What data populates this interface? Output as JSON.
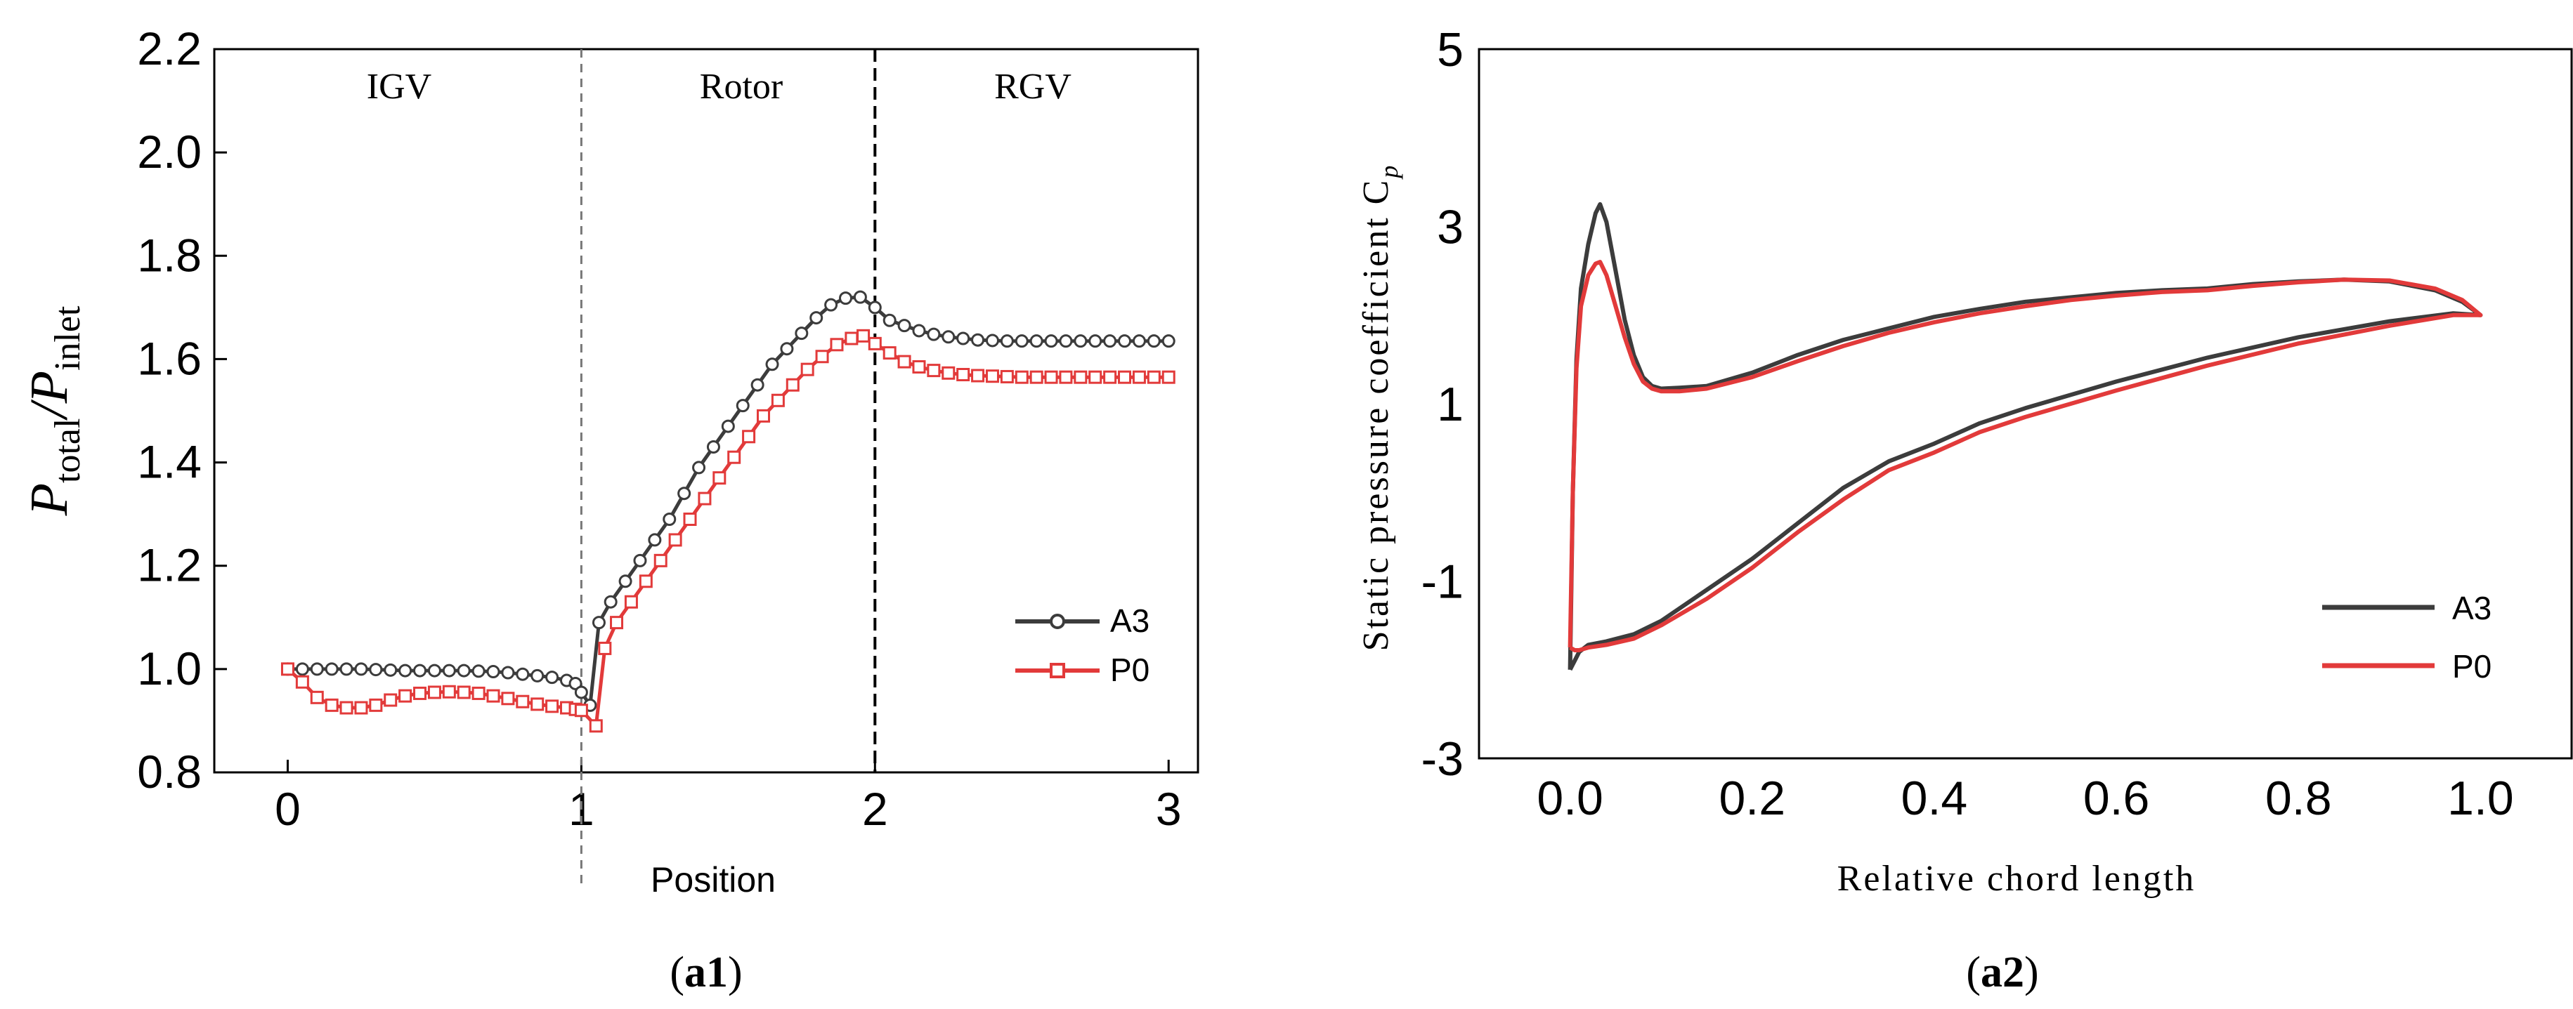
{
  "chart_data": [
    {
      "id": "a1",
      "type": "line",
      "panel_label": "a1",
      "title": "",
      "xlabel": "Position",
      "ylabel": {
        "main": "P",
        "sub1": "total",
        "sep": "/P",
        "sub2": "inlet"
      },
      "xlim": [
        -0.25,
        3.1
      ],
      "ylim": [
        0.8,
        2.2
      ],
      "xticks": [
        "0",
        "1",
        "2",
        "3"
      ],
      "yticks": [
        "0.8",
        "1.0",
        "1.2",
        "1.4",
        "1.6",
        "1.8",
        "2.0",
        "2.2"
      ],
      "regions": [
        "IGV",
        "Rotor",
        "RGV"
      ],
      "dividers": [
        1,
        2
      ],
      "legend": {
        "position": "lower-right",
        "entries": [
          "A3",
          "P0"
        ]
      },
      "series": [
        {
          "name": "A3",
          "color": "#3c3c3c",
          "marker": "circle",
          "points": [
            [
              0,
              1.0
            ],
            [
              0.05,
              1.0
            ],
            [
              0.1,
              1.0
            ],
            [
              0.15,
              1.0
            ],
            [
              0.2,
              1.0
            ],
            [
              0.25,
              1.0
            ],
            [
              0.3,
              0.999
            ],
            [
              0.35,
              0.998
            ],
            [
              0.4,
              0.997
            ],
            [
              0.45,
              0.997
            ],
            [
              0.5,
              0.997
            ],
            [
              0.55,
              0.997
            ],
            [
              0.6,
              0.997
            ],
            [
              0.65,
              0.996
            ],
            [
              0.7,
              0.995
            ],
            [
              0.75,
              0.993
            ],
            [
              0.8,
              0.99
            ],
            [
              0.85,
              0.987
            ],
            [
              0.9,
              0.984
            ],
            [
              0.95,
              0.978
            ],
            [
              0.98,
              0.972
            ],
            [
              1.0,
              0.955
            ],
            [
              1.03,
              0.93
            ],
            [
              1.06,
              1.09
            ],
            [
              1.1,
              1.13
            ],
            [
              1.15,
              1.17
            ],
            [
              1.2,
              1.21
            ],
            [
              1.25,
              1.25
            ],
            [
              1.3,
              1.29
            ],
            [
              1.35,
              1.34
            ],
            [
              1.4,
              1.39
            ],
            [
              1.45,
              1.43
            ],
            [
              1.5,
              1.47
            ],
            [
              1.55,
              1.51
            ],
            [
              1.6,
              1.55
            ],
            [
              1.65,
              1.59
            ],
            [
              1.7,
              1.62
            ],
            [
              1.75,
              1.65
            ],
            [
              1.8,
              1.68
            ],
            [
              1.85,
              1.705
            ],
            [
              1.9,
              1.718
            ],
            [
              1.95,
              1.72
            ],
            [
              2.0,
              1.7
            ],
            [
              2.05,
              1.675
            ],
            [
              2.1,
              1.665
            ],
            [
              2.15,
              1.655
            ],
            [
              2.2,
              1.648
            ],
            [
              2.25,
              1.643
            ],
            [
              2.3,
              1.64
            ],
            [
              2.35,
              1.637
            ],
            [
              2.4,
              1.636
            ],
            [
              2.45,
              1.635
            ],
            [
              2.5,
              1.635
            ],
            [
              2.55,
              1.635
            ],
            [
              2.6,
              1.635
            ],
            [
              2.65,
              1.635
            ],
            [
              2.7,
              1.635
            ],
            [
              2.75,
              1.635
            ],
            [
              2.8,
              1.635
            ],
            [
              2.85,
              1.635
            ],
            [
              2.9,
              1.635
            ],
            [
              2.95,
              1.635
            ],
            [
              3.0,
              1.635
            ]
          ]
        },
        {
          "name": "P0",
          "color": "#e23a3a",
          "marker": "square",
          "points": [
            [
              0,
              1.0
            ],
            [
              0.05,
              0.975
            ],
            [
              0.1,
              0.945
            ],
            [
              0.15,
              0.93
            ],
            [
              0.2,
              0.925
            ],
            [
              0.25,
              0.925
            ],
            [
              0.3,
              0.93
            ],
            [
              0.35,
              0.94
            ],
            [
              0.4,
              0.948
            ],
            [
              0.45,
              0.953
            ],
            [
              0.5,
              0.955
            ],
            [
              0.55,
              0.956
            ],
            [
              0.6,
              0.955
            ],
            [
              0.65,
              0.953
            ],
            [
              0.7,
              0.948
            ],
            [
              0.75,
              0.943
            ],
            [
              0.8,
              0.937
            ],
            [
              0.85,
              0.932
            ],
            [
              0.9,
              0.928
            ],
            [
              0.95,
              0.925
            ],
            [
              0.98,
              0.922
            ],
            [
              1.0,
              0.92
            ],
            [
              1.05,
              0.89
            ],
            [
              1.08,
              1.04
            ],
            [
              1.12,
              1.09
            ],
            [
              1.17,
              1.13
            ],
            [
              1.22,
              1.17
            ],
            [
              1.27,
              1.21
            ],
            [
              1.32,
              1.25
            ],
            [
              1.37,
              1.29
            ],
            [
              1.42,
              1.33
            ],
            [
              1.47,
              1.37
            ],
            [
              1.52,
              1.41
            ],
            [
              1.57,
              1.45
            ],
            [
              1.62,
              1.49
            ],
            [
              1.67,
              1.52
            ],
            [
              1.72,
              1.55
            ],
            [
              1.77,
              1.58
            ],
            [
              1.82,
              1.605
            ],
            [
              1.87,
              1.628
            ],
            [
              1.92,
              1.64
            ],
            [
              1.96,
              1.645
            ],
            [
              2.0,
              1.63
            ],
            [
              2.05,
              1.612
            ],
            [
              2.1,
              1.595
            ],
            [
              2.15,
              1.585
            ],
            [
              2.2,
              1.578
            ],
            [
              2.25,
              1.573
            ],
            [
              2.3,
              1.57
            ],
            [
              2.35,
              1.568
            ],
            [
              2.4,
              1.567
            ],
            [
              2.45,
              1.566
            ],
            [
              2.5,
              1.565
            ],
            [
              2.55,
              1.565
            ],
            [
              2.6,
              1.565
            ],
            [
              2.65,
              1.565
            ],
            [
              2.7,
              1.565
            ],
            [
              2.75,
              1.565
            ],
            [
              2.8,
              1.565
            ],
            [
              2.85,
              1.565
            ],
            [
              2.9,
              1.565
            ],
            [
              2.95,
              1.565
            ],
            [
              3.0,
              1.565
            ]
          ]
        }
      ]
    },
    {
      "id": "a2",
      "type": "line",
      "panel_label": "a2",
      "title": "",
      "xlabel": "Relative chord length",
      "ylabel": {
        "main": "Static pressure coefficient C",
        "sub": "p"
      },
      "xlim": [
        -0.1,
        1.1
      ],
      "ylim": [
        -3,
        5
      ],
      "xticks": [
        "0.0",
        "0.2",
        "0.4",
        "0.6",
        "0.8",
        "1.0"
      ],
      "yticks": [
        "-3",
        "-1",
        "1",
        "3",
        "5"
      ],
      "legend": {
        "position": "lower-right",
        "entries": [
          "A3",
          "P0"
        ]
      },
      "series": [
        {
          "name": "A3",
          "color": "#3c3c3c",
          "points": [
            [
              0.0,
              -2.0
            ],
            [
              0.003,
              0.0
            ],
            [
              0.007,
              1.5
            ],
            [
              0.012,
              2.3
            ],
            [
              0.02,
              2.8
            ],
            [
              0.028,
              3.15
            ],
            [
              0.033,
              3.25
            ],
            [
              0.04,
              3.05
            ],
            [
              0.05,
              2.5
            ],
            [
              0.06,
              1.95
            ],
            [
              0.07,
              1.55
            ],
            [
              0.08,
              1.3
            ],
            [
              0.09,
              1.2
            ],
            [
              0.1,
              1.17
            ],
            [
              0.12,
              1.18
            ],
            [
              0.15,
              1.2
            ],
            [
              0.2,
              1.35
            ],
            [
              0.25,
              1.55
            ],
            [
              0.3,
              1.72
            ],
            [
              0.35,
              1.85
            ],
            [
              0.4,
              1.98
            ],
            [
              0.45,
              2.07
            ],
            [
              0.5,
              2.15
            ],
            [
              0.55,
              2.2
            ],
            [
              0.6,
              2.25
            ],
            [
              0.65,
              2.28
            ],
            [
              0.7,
              2.3
            ],
            [
              0.75,
              2.35
            ],
            [
              0.8,
              2.38
            ],
            [
              0.85,
              2.4
            ],
            [
              0.9,
              2.38
            ],
            [
              0.95,
              2.28
            ],
            [
              0.98,
              2.15
            ],
            [
              1.0,
              2.0
            ],
            [
              0.97,
              2.02
            ],
            [
              0.9,
              1.93
            ],
            [
              0.8,
              1.75
            ],
            [
              0.7,
              1.52
            ],
            [
              0.6,
              1.25
            ],
            [
              0.5,
              0.95
            ],
            [
              0.45,
              0.78
            ],
            [
              0.4,
              0.55
            ],
            [
              0.35,
              0.35
            ],
            [
              0.3,
              0.05
            ],
            [
              0.25,
              -0.35
            ],
            [
              0.2,
              -0.75
            ],
            [
              0.15,
              -1.1
            ],
            [
              0.1,
              -1.45
            ],
            [
              0.07,
              -1.6
            ],
            [
              0.04,
              -1.68
            ],
            [
              0.02,
              -1.72
            ],
            [
              0.01,
              -1.8
            ],
            [
              0.005,
              -1.9
            ],
            [
              0.0,
              -2.0
            ]
          ]
        },
        {
          "name": "P0",
          "color": "#e23a3a",
          "points": [
            [
              0.0,
              -1.75
            ],
            [
              0.003,
              0.0
            ],
            [
              0.007,
              1.4
            ],
            [
              0.012,
              2.1
            ],
            [
              0.02,
              2.45
            ],
            [
              0.028,
              2.58
            ],
            [
              0.033,
              2.6
            ],
            [
              0.04,
              2.45
            ],
            [
              0.05,
              2.1
            ],
            [
              0.06,
              1.75
            ],
            [
              0.07,
              1.45
            ],
            [
              0.08,
              1.25
            ],
            [
              0.09,
              1.17
            ],
            [
              0.1,
              1.14
            ],
            [
              0.12,
              1.14
            ],
            [
              0.15,
              1.17
            ],
            [
              0.2,
              1.3
            ],
            [
              0.25,
              1.48
            ],
            [
              0.3,
              1.65
            ],
            [
              0.35,
              1.8
            ],
            [
              0.4,
              1.92
            ],
            [
              0.45,
              2.02
            ],
            [
              0.5,
              2.1
            ],
            [
              0.55,
              2.17
            ],
            [
              0.6,
              2.22
            ],
            [
              0.65,
              2.26
            ],
            [
              0.7,
              2.28
            ],
            [
              0.75,
              2.33
            ],
            [
              0.8,
              2.37
            ],
            [
              0.85,
              2.4
            ],
            [
              0.9,
              2.39
            ],
            [
              0.95,
              2.3
            ],
            [
              0.98,
              2.17
            ],
            [
              1.0,
              2.0
            ],
            [
              0.97,
              2.0
            ],
            [
              0.9,
              1.88
            ],
            [
              0.8,
              1.68
            ],
            [
              0.7,
              1.43
            ],
            [
              0.6,
              1.15
            ],
            [
              0.5,
              0.85
            ],
            [
              0.45,
              0.68
            ],
            [
              0.4,
              0.45
            ],
            [
              0.35,
              0.25
            ],
            [
              0.3,
              -0.08
            ],
            [
              0.25,
              -0.45
            ],
            [
              0.2,
              -0.85
            ],
            [
              0.15,
              -1.2
            ],
            [
              0.1,
              -1.5
            ],
            [
              0.07,
              -1.65
            ],
            [
              0.04,
              -1.72
            ],
            [
              0.02,
              -1.75
            ],
            [
              0.01,
              -1.78
            ],
            [
              0.005,
              -1.78
            ],
            [
              0.0,
              -1.75
            ]
          ]
        }
      ]
    }
  ]
}
